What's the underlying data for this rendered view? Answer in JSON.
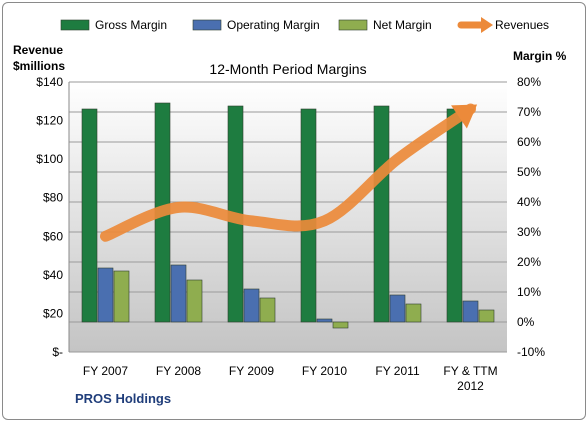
{
  "company": "PROS Holdings",
  "chart_data": {
    "type": "bar",
    "title": "12-Month Period Margins",
    "left_axis_title": [
      "Revenue",
      "$millions"
    ],
    "right_axis_title": "Margin %",
    "categories": [
      [
        "FY 2007"
      ],
      [
        "FY 2008"
      ],
      [
        "FY 2009"
      ],
      [
        "FY 2010"
      ],
      [
        "FY 2011"
      ],
      [
        "FY & TTM",
        "2012"
      ]
    ],
    "left_axis": {
      "min": 0,
      "max": 140,
      "step": 20,
      "tick_labels": [
        "$-",
        "$20",
        "$40",
        "$60",
        "$80",
        "$100",
        "$120",
        "$140"
      ]
    },
    "right_axis": {
      "min": -10,
      "max": 80,
      "step": 10,
      "tick_labels": [
        "-10%",
        "0%",
        "10%",
        "20%",
        "30%",
        "40%",
        "50%",
        "60%",
        "70%",
        "80%"
      ]
    },
    "series": [
      {
        "name": "Gross Margin",
        "axis": "right",
        "kind": "bar",
        "color": "#1e7c40",
        "values": [
          71,
          73,
          72,
          71,
          72,
          71
        ]
      },
      {
        "name": "Operating Margin",
        "axis": "right",
        "kind": "bar",
        "color": "#4a6fb0",
        "values": [
          18,
          19,
          11,
          1,
          9,
          7
        ]
      },
      {
        "name": "Net Margin",
        "axis": "right",
        "kind": "bar",
        "color": "#8fad4f",
        "values": [
          17,
          14,
          8,
          -2,
          6,
          4
        ]
      },
      {
        "name": "Revenues",
        "axis": "left",
        "kind": "line",
        "color": "#ec8a3a",
        "values": [
          60,
          75,
          68,
          68,
          100,
          126
        ]
      }
    ],
    "grid": true,
    "legend_position": "top"
  }
}
